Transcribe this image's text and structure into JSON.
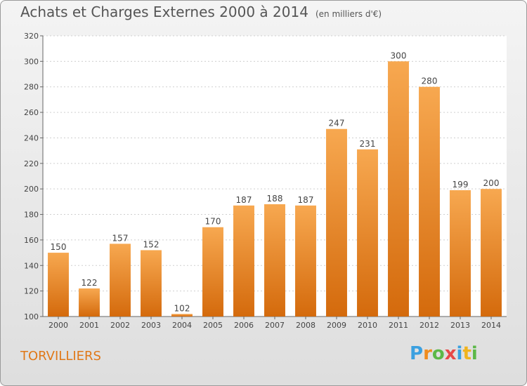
{
  "chart_data": {
    "type": "bar",
    "title": "Achats et Charges Externes 2000 à 2014",
    "subtitle": "(en milliers d'€)",
    "categories": [
      "2000",
      "2001",
      "2002",
      "2003",
      "2004",
      "2005",
      "2006",
      "2007",
      "2008",
      "2009",
      "2010",
      "2011",
      "2012",
      "2013",
      "2014"
    ],
    "values": [
      150,
      122,
      157,
      152,
      102,
      170,
      187,
      188,
      187,
      247,
      231,
      300,
      280,
      199,
      200
    ],
    "ylim": [
      100,
      320
    ],
    "yticks": [
      100,
      120,
      140,
      160,
      180,
      200,
      220,
      240,
      260,
      280,
      300,
      320
    ],
    "grid": true,
    "bar_color": "#e8801e"
  },
  "location": "TORVILLIERS",
  "brand": {
    "letters": [
      "P",
      "r",
      "o",
      "x",
      "i",
      "t",
      "i"
    ],
    "colors": [
      "#3ba0e0",
      "#f08c1e",
      "#5cb848",
      "#e84848",
      "#3ba0e0",
      "#f0b41e",
      "#5cb848"
    ]
  }
}
